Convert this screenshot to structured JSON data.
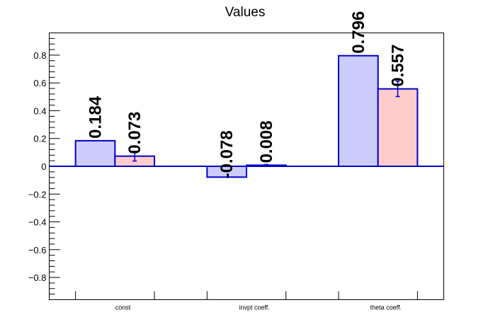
{
  "chart_data": {
    "type": "bar",
    "title": "Values",
    "xlabel": "",
    "ylabel": "",
    "categories": [
      "const",
      "invpt coeff.",
      "theta coeff."
    ],
    "series": [
      {
        "values": [
          0.184,
          -0.078,
          0.796
        ],
        "labels": [
          "0.184",
          "-0.078",
          "0.796"
        ],
        "errors": [
          0,
          0,
          0
        ],
        "fill": "#ccccff",
        "stroke": "#0000cc"
      },
      {
        "values": [
          0.073,
          0.008,
          0.557
        ],
        "labels": [
          "0.073",
          "0.008",
          "0.557"
        ],
        "errors": [
          0.035,
          0.005,
          0.055
        ],
        "fill": "#ffcccc",
        "stroke": "#0000cc"
      }
    ],
    "ylim": [
      -0.96,
      0.96
    ],
    "yticks": [
      -0.8,
      -0.6,
      -0.4,
      -0.2,
      0,
      0.2,
      0.4,
      0.6,
      0.8
    ],
    "ytick_labels": [
      "−0.8",
      "−0.6",
      "−0.4",
      "−0.2",
      "0",
      "0.2",
      "0.4",
      "0.6",
      "0.8"
    ],
    "grid": false,
    "legend": "none",
    "zero_line_color": "#0000cc"
  }
}
